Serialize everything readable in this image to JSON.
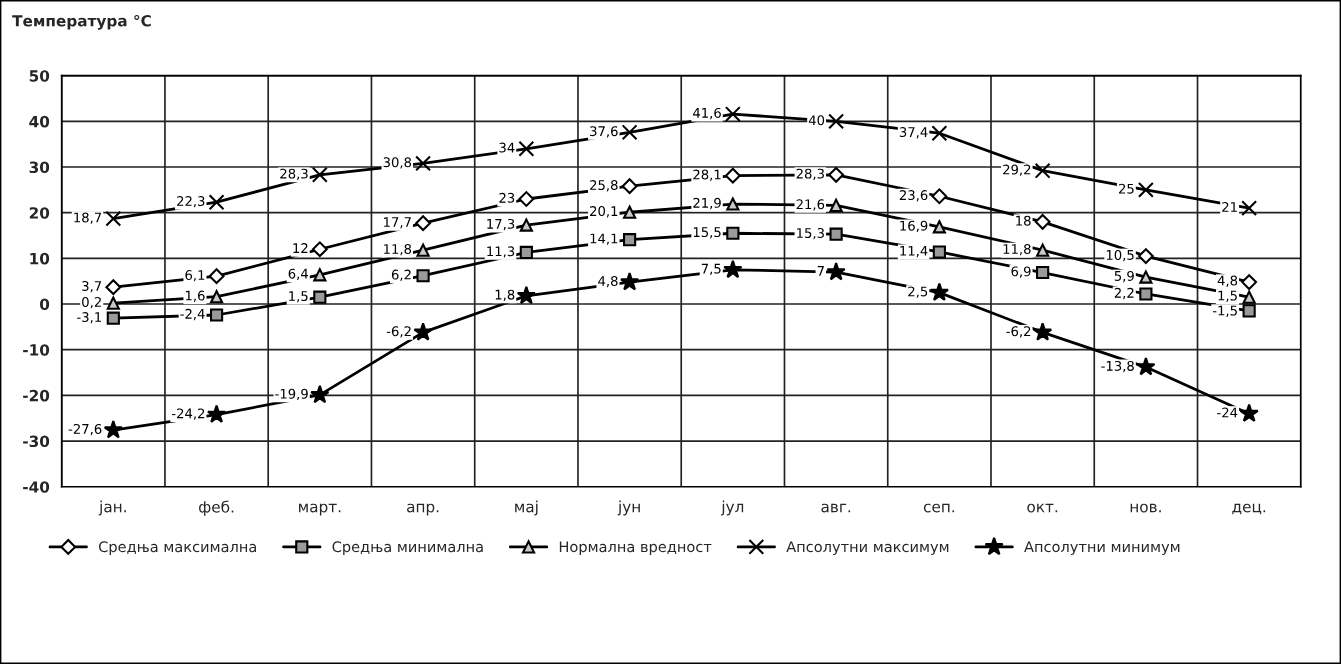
{
  "chart_data": {
    "type": "line",
    "ylabel": "Температура °C",
    "categories": [
      "јан.",
      "феб.",
      "март.",
      "апр.",
      "мај",
      "јун",
      "јул",
      "авг.",
      "сеп.",
      "окт.",
      "нов.",
      "дец."
    ],
    "series": [
      {
        "name": "Средња максимална",
        "color": "#000000",
        "marker": "diamond",
        "values": [
          3.7,
          6.1,
          12,
          17.7,
          23,
          25.8,
          28.1,
          28.3,
          23.6,
          18,
          10.5,
          4.8
        ],
        "value_labels": [
          "3,7",
          "6,1",
          "12",
          "17,7",
          "23",
          "25,8",
          "28,1",
          "28,3",
          "23,6",
          "18",
          "10,5",
          "4,8"
        ]
      },
      {
        "name": "Средња минимална",
        "color": "#000000",
        "marker": "square",
        "values": [
          -3.1,
          -2.4,
          1.5,
          6.2,
          11.3,
          14.1,
          15.5,
          15.3,
          11.4,
          6.9,
          2.2,
          -1.5
        ],
        "value_labels": [
          "-3,1",
          "-2,4",
          "1,5",
          "6,2",
          "11,3",
          "14,1",
          "15,5",
          "15,3",
          "11,4",
          "6,9",
          "2,2",
          "-1,5"
        ]
      },
      {
        "name": "Нормална вредност",
        "color": "#000000",
        "marker": "triangle",
        "values": [
          0.2,
          1.6,
          6.4,
          11.8,
          17.3,
          20.1,
          21.9,
          21.6,
          16.9,
          11.8,
          5.9,
          1.5
        ],
        "value_labels": [
          "0,2",
          "1,6",
          "6,4",
          "11,8",
          "17,3",
          "20,1",
          "21,9",
          "21,6",
          "16,9",
          "11,8",
          "5,9",
          "1,5"
        ]
      },
      {
        "name": "Апсолутни максимум",
        "color": "#000000",
        "marker": "cross",
        "values": [
          18.7,
          22.3,
          28.3,
          30.8,
          34,
          37.6,
          41.6,
          40,
          37.4,
          29.2,
          25,
          21
        ],
        "value_labels": [
          "18,7",
          "22,3",
          "28,3",
          "30,8",
          "34",
          "37,6",
          "41,6",
          "40",
          "37,4",
          "29,2",
          "25",
          "21"
        ]
      },
      {
        "name": "Апсолутни минимум",
        "color": "#000000",
        "marker": "star",
        "values": [
          -27.6,
          -24.2,
          -19.9,
          -6.2,
          1.8,
          4.8,
          7.5,
          7,
          2.5,
          -6.2,
          -13.8,
          -24
        ],
        "value_labels": [
          "-27,6",
          "-24,2",
          "-19,9",
          "-6,2",
          "1,8",
          "4,8",
          "7,5",
          "7",
          "2,5",
          "-6,2",
          "-13,8",
          "-24"
        ]
      }
    ],
    "ylim": [
      -40,
      50
    ],
    "yticks": [
      -40,
      -30,
      -20,
      -10,
      0,
      10,
      20,
      30,
      40,
      50
    ],
    "grid": true,
    "legend": "bottom",
    "line_style": "solid"
  }
}
